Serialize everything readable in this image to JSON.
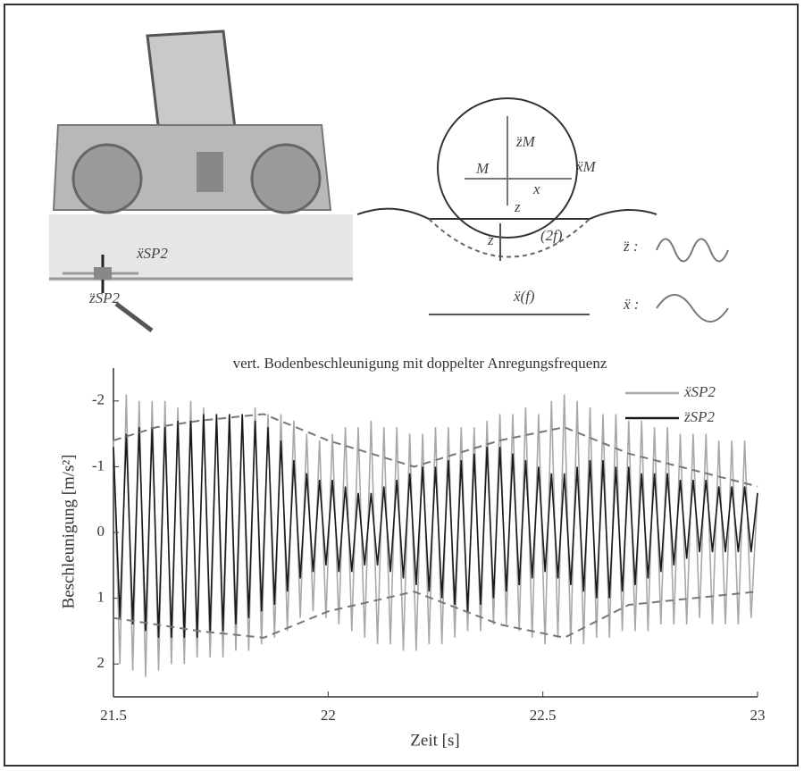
{
  "chart_data": {
    "type": "line",
    "annotation": "vert. Bodenbeschleunigung mit doppelter Anregungsfrequenz",
    "xlabel": "Zeit [s]",
    "ylabel": "Beschleunigung [m/s²]",
    "xlim": [
      21.5,
      23
    ],
    "xticks": [
      21.5,
      22,
      22.5,
      23
    ],
    "ylim": [
      -2.5,
      2.5
    ],
    "yticks": [
      -2,
      -1,
      0,
      1,
      2
    ],
    "y_inverted": true,
    "grid": false,
    "legend": "upper right",
    "x": [
      21.5,
      21.515,
      21.53,
      21.545,
      21.56,
      21.575,
      21.59,
      21.605,
      21.62,
      21.635,
      21.65,
      21.665,
      21.68,
      21.695,
      21.71,
      21.725,
      21.74,
      21.755,
      21.77,
      21.785,
      21.8,
      21.815,
      21.83,
      21.845,
      21.86,
      21.875,
      21.89,
      21.905,
      21.92,
      21.935,
      21.95,
      21.965,
      21.98,
      21.995,
      22.01,
      22.025,
      22.04,
      22.055,
      22.07,
      22.085,
      22.1,
      22.115,
      22.13,
      22.145,
      22.16,
      22.175,
      22.19,
      22.205,
      22.22,
      22.235,
      22.25,
      22.265,
      22.28,
      22.295,
      22.31,
      22.325,
      22.34,
      22.355,
      22.37,
      22.385,
      22.4,
      22.415,
      22.43,
      22.445,
      22.46,
      22.475,
      22.49,
      22.505,
      22.52,
      22.535,
      22.55,
      22.565,
      22.58,
      22.595,
      22.61,
      22.625,
      22.64,
      22.655,
      22.67,
      22.685,
      22.7,
      22.715,
      22.73,
      22.745,
      22.76,
      22.775,
      22.79,
      22.805,
      22.82,
      22.835,
      22.85,
      22.865,
      22.88,
      22.895,
      22.91,
      22.925,
      22.94,
      22.955,
      22.97,
      22.985,
      23.0
    ],
    "series": [
      {
        "name": "ẍSP2",
        "color": "#a8a8a8",
        "values": [
          -1.4,
          2.0,
          -2.1,
          2.1,
          -2.0,
          2.2,
          -2.0,
          2.1,
          -2.0,
          2.0,
          -1.9,
          2.0,
          -2.0,
          1.9,
          -1.9,
          1.9,
          -1.8,
          1.9,
          -1.8,
          1.8,
          -1.8,
          1.8,
          -1.9,
          1.7,
          -1.8,
          1.6,
          -1.8,
          1.5,
          -1.7,
          1.3,
          -1.5,
          1.2,
          -1.4,
          1.3,
          -1.5,
          1.4,
          -1.6,
          1.5,
          -1.6,
          1.6,
          -1.7,
          1.7,
          -1.6,
          1.7,
          -1.6,
          1.8,
          -1.5,
          1.8,
          -1.5,
          1.7,
          -1.6,
          1.7,
          -1.6,
          1.6,
          -1.6,
          1.5,
          -1.6,
          1.5,
          -1.7,
          1.4,
          -1.8,
          1.4,
          -1.8,
          1.5,
          -1.9,
          1.6,
          -1.8,
          1.7,
          -2.0,
          1.6,
          -2.1,
          1.7,
          -2.0,
          1.7,
          -1.9,
          1.6,
          -1.8,
          1.6,
          -1.8,
          1.5,
          -1.7,
          1.5,
          -1.7,
          1.5,
          -1.6,
          1.4,
          -1.6,
          1.4,
          -1.5,
          1.4,
          -1.5,
          1.3,
          -1.5,
          1.4,
          -1.4,
          1.4,
          -1.4,
          1.4,
          -1.4,
          1.3,
          -0.6
        ]
      },
      {
        "name": "z̈SP2",
        "color": "#1a1a1a",
        "values": [
          -1.3,
          1.3,
          -1.5,
          1.4,
          -1.6,
          1.5,
          -1.6,
          1.6,
          -1.6,
          1.6,
          -1.7,
          1.6,
          -1.7,
          1.6,
          -1.8,
          1.5,
          -1.8,
          1.5,
          -1.8,
          1.4,
          -1.8,
          1.3,
          -1.7,
          1.2,
          -1.6,
          1.1,
          -1.4,
          0.9,
          -1.1,
          0.7,
          -0.9,
          0.6,
          -0.8,
          0.5,
          -0.8,
          0.6,
          -0.7,
          0.6,
          -0.6,
          0.5,
          -0.6,
          0.5,
          -0.7,
          0.6,
          -0.8,
          0.7,
          -0.9,
          0.8,
          -1.0,
          0.9,
          -1.0,
          1.0,
          -1.1,
          1.1,
          -1.1,
          1.2,
          -1.2,
          1.1,
          -1.3,
          1.0,
          -1.3,
          0.9,
          -1.2,
          0.8,
          -1.1,
          0.7,
          -1.0,
          0.6,
          -0.9,
          0.7,
          -0.9,
          0.8,
          -1.0,
          0.9,
          -1.1,
          1.0,
          -1.1,
          1.0,
          -1.0,
          0.9,
          -1.0,
          0.8,
          -0.9,
          0.7,
          -0.9,
          0.6,
          -0.9,
          0.5,
          -0.8,
          0.4,
          -0.8,
          0.3,
          -0.8,
          0.3,
          -0.7,
          0.3,
          -0.7,
          0.3,
          -0.7,
          0.3,
          -0.6
        ]
      },
      {
        "color": "#777777",
        "dashed": true,
        "x": [
          21.5,
          21.6,
          21.7,
          21.85,
          22.0,
          22.2,
          22.4,
          22.55,
          22.7,
          23.0
        ],
        "values": [
          -1.4,
          -1.6,
          -1.7,
          -1.8,
          -1.4,
          -1.0,
          -1.4,
          -1.6,
          -1.2,
          -0.7
        ]
      },
      {
        "color": "#777777",
        "dashed": true,
        "x": [
          21.5,
          21.6,
          21.7,
          21.85,
          22.0,
          22.2,
          22.4,
          22.55,
          22.7,
          23.0
        ],
        "values": [
          1.3,
          1.4,
          1.5,
          1.6,
          1.2,
          0.9,
          1.4,
          1.6,
          1.1,
          0.9
        ]
      }
    ]
  },
  "diagram": {
    "labels": [
      "z̈M",
      "ẍM",
      "M",
      "x",
      "z",
      "z̈",
      "(2f)",
      "ẍ(f)",
      "z̈ :",
      "ẍ :",
      "ẍSP2",
      "z̈SP2"
    ]
  }
}
